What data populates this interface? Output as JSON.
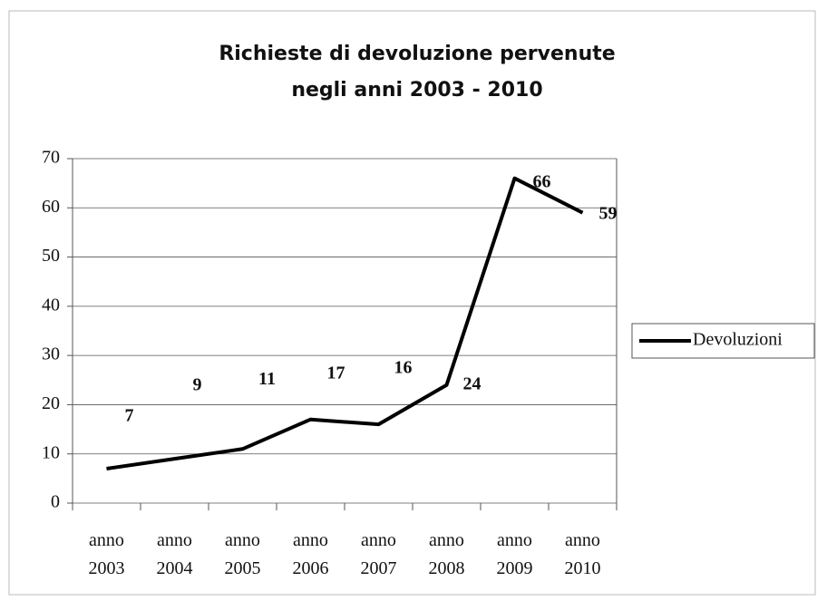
{
  "chart_data": {
    "type": "line",
    "title": [
      "Richieste di devoluzione pervenute",
      "negli anni 2003 - 2010"
    ],
    "categories": [
      "anno 2003",
      "anno 2004",
      "anno 2005",
      "anno 2006",
      "anno 2007",
      "anno 2008",
      "anno 2009",
      "anno 2010"
    ],
    "series": [
      {
        "name": "Devoluzioni",
        "color": "#000000",
        "values": [
          7,
          9,
          11,
          17,
          16,
          24,
          66,
          59
        ]
      }
    ],
    "ylim": [
      0,
      70
    ],
    "yticks": [
      0,
      10,
      20,
      30,
      40,
      50,
      60,
      70
    ],
    "grid": true,
    "legend": "right"
  }
}
